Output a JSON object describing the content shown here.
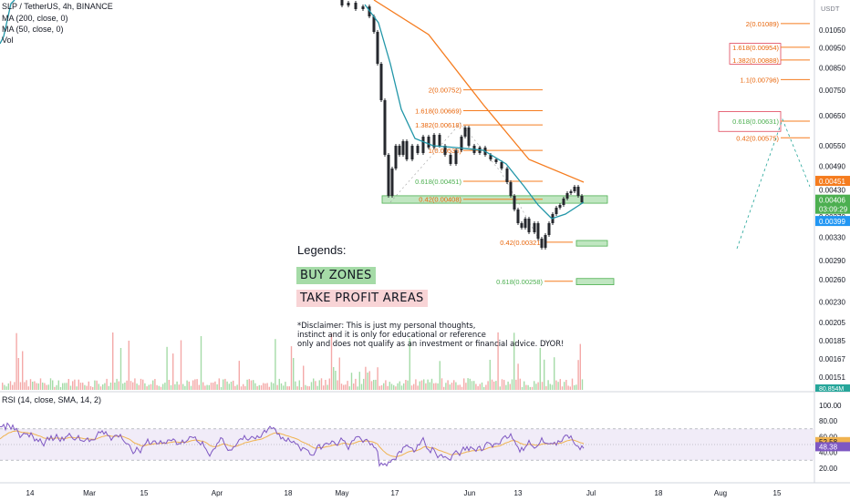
{
  "header": {
    "title": "SLP / TetherUS, 4h, BINANCE",
    "indicators": [
      "MA (200, close, 0)",
      "MA (50, close, 0)",
      "Vol"
    ]
  },
  "rsi_label": "RSI (14, close, SMA, 14, 2)",
  "legend": {
    "title": "Legends:",
    "buy_zones": "BUY ZONES",
    "take_profit": "TAKE PROFIT AREAS",
    "disclaimer": [
      "*Disclaimer: This is just my personal thoughts,",
      "instinct and it is only for educational or reference",
      "only and does not qualify as an investment or financial advice. DYOR!"
    ]
  },
  "colors": {
    "ma200": "#f57c1f",
    "ma50": "#2196a8",
    "candle": "#26282e",
    "fib_line": "#f57c1f",
    "fib_text": "#e8650a",
    "fib_text_green": "#4caf50",
    "buy_zone": "#a5dba7",
    "buy_zone_border": "#4caf50",
    "tp_zone_border": "#e0455a",
    "volume_up": "#a5dba7",
    "volume_down": "#f4a9a8",
    "rsi_line": "#7e57c2",
    "rsi_ma": "#f0b350",
    "rsi_band": "#ede7f6",
    "price_last_bg": "#4caf50",
    "price_ma200_bg": "#f57c1f",
    "price_ma50_bg": "#2196f3"
  },
  "chart_data": {
    "type": "candlestick",
    "symbol": "SLP / TetherUS",
    "timeframe": "4h",
    "exchange": "BINANCE",
    "y_axis": {
      "unit": "USDT",
      "scale": "log",
      "ticks": [
        "0.01050",
        "0.00950",
        "0.00850",
        "0.00750",
        "0.00650",
        "0.00550",
        "0.00490",
        "0.00430",
        "0.00370",
        "0.00330",
        "0.00290",
        "0.00260",
        "0.00230",
        "0.00205",
        "0.00185",
        "0.00167",
        "0.00151"
      ]
    },
    "x_axis": {
      "ticks": [
        "14",
        "Mar",
        "15",
        "Apr",
        "18",
        "May",
        "17",
        "Jun",
        "13",
        "Jul",
        "18",
        "Aug",
        "15"
      ]
    },
    "price_labels": [
      {
        "value": "0.00451",
        "kind": "ma200"
      },
      {
        "value": "0.00430",
        "kind": "tick"
      },
      {
        "value": "0.00406",
        "kind": "last"
      },
      {
        "value": "03:09:29",
        "kind": "countdown"
      },
      {
        "value": "0.00399",
        "kind": "ma50"
      }
    ],
    "volume_label": "80.854M",
    "fib_levels_left": [
      {
        "label": "2(0.00752)",
        "value": 0.00752
      },
      {
        "label": "1.618(0.00669)",
        "value": 0.00669
      },
      {
        "label": "1.382(0.00618)",
        "value": 0.00618
      },
      {
        "label": "1(0.00536)",
        "value": 0.00536
      },
      {
        "label": "0.618(0.00451)",
        "value": 0.00451,
        "green": true
      },
      {
        "label": "0.42(0.00408)",
        "value": 0.00408
      }
    ],
    "fib_levels_lower": [
      {
        "label": "0.42(0.00321)",
        "value": 0.00321
      },
      {
        "label": "0.618(0.00258)",
        "value": 0.00258,
        "green": true
      }
    ],
    "fib_levels_right": [
      {
        "label": "2(0.01089)",
        "value": 0.01089
      },
      {
        "label": "1.618(0.00954)",
        "value": 0.00954
      },
      {
        "label": "1.382(0.00888)",
        "value": 0.00888
      },
      {
        "label": "1.1(0.00796)",
        "value": 0.00796
      },
      {
        "label": "0.618(0.00631)",
        "value": 0.00631,
        "green": true
      },
      {
        "label": "0.42(0.00575)",
        "value": 0.00575
      }
    ],
    "buy_zones": [
      {
        "label": "buy-zone-1",
        "low": 0.00399,
        "high": 0.00416
      },
      {
        "label": "buy-zone-2",
        "low": 0.00314,
        "high": 0.00324
      },
      {
        "label": "buy-zone-3",
        "low": 0.00253,
        "high": 0.00262
      }
    ],
    "take_profit_zones": [
      {
        "label": "tp-zone-1",
        "low": 0.00596,
        "high": 0.00666
      },
      {
        "label": "tp-zone-2",
        "low": 0.00868,
        "high": 0.00975
      }
    ],
    "rsi": {
      "ticks": [
        "100.00",
        "80.00",
        "60.00",
        "40.00",
        "20.00"
      ],
      "upper_band": 70,
      "lower_band": 30,
      "value": "52.58",
      "ma_value": "48.38"
    }
  }
}
